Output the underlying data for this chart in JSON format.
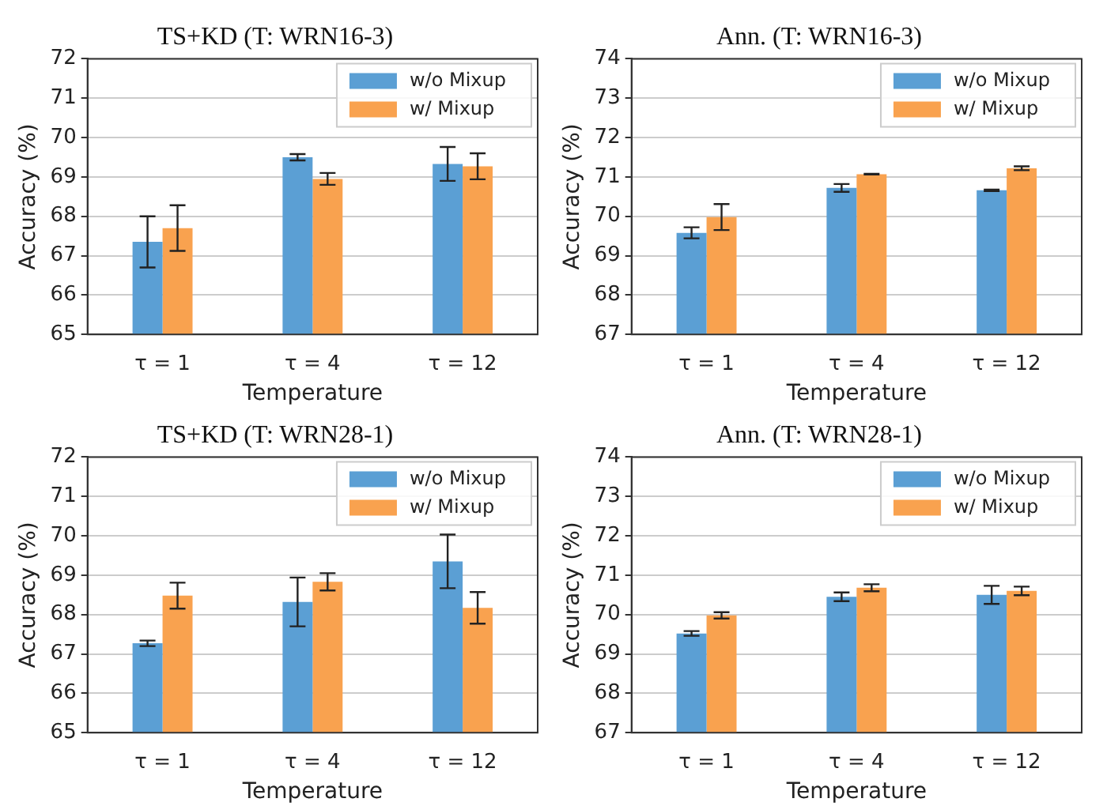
{
  "chart_data": [
    {
      "type": "bar",
      "title": "TS+KD (T: WRN16-3)",
      "xlabel": "Temperature",
      "ylabel": "Accuracy (%)",
      "categories": [
        "τ = 1",
        "τ = 4",
        "τ = 12"
      ],
      "ylim": [
        65,
        72
      ],
      "yticks": [
        65,
        66,
        67,
        68,
        69,
        70,
        71,
        72
      ],
      "grid": "y",
      "legend": "top right",
      "series": [
        {
          "name": "w/o Mixup",
          "color": "#5b9fd4",
          "values": [
            67.35,
            69.5,
            69.33
          ],
          "errors": [
            0.65,
            0.08,
            0.43
          ]
        },
        {
          "name": "w/ Mixup",
          "color": "#f9a24f",
          "values": [
            67.7,
            68.95,
            69.27
          ],
          "errors": [
            0.58,
            0.15,
            0.33
          ]
        }
      ]
    },
    {
      "type": "bar",
      "title": "Ann. (T: WRN16-3)",
      "xlabel": "Temperature",
      "ylabel": "Accuracy (%)",
      "categories": [
        "τ = 1",
        "τ = 4",
        "τ = 12"
      ],
      "ylim": [
        67,
        74
      ],
      "yticks": [
        67,
        68,
        69,
        70,
        71,
        72,
        73,
        74
      ],
      "grid": "y",
      "legend": "top right",
      "series": [
        {
          "name": "w/o Mixup",
          "color": "#5b9fd4",
          "values": [
            69.58,
            70.72,
            70.66
          ],
          "errors": [
            0.14,
            0.1,
            0.02
          ]
        },
        {
          "name": "w/ Mixup",
          "color": "#f9a24f",
          "values": [
            69.98,
            71.07,
            71.22
          ],
          "errors": [
            0.33,
            0.01,
            0.05
          ]
        }
      ]
    },
    {
      "type": "bar",
      "title": "TS+KD (T: WRN28-1)",
      "xlabel": "Temperature",
      "ylabel": "Accuracy (%)",
      "categories": [
        "τ = 1",
        "τ = 4",
        "τ = 12"
      ],
      "ylim": [
        65,
        72
      ],
      "yticks": [
        65,
        66,
        67,
        68,
        69,
        70,
        71,
        72
      ],
      "grid": "y",
      "legend": "top right",
      "series": [
        {
          "name": "w/o Mixup",
          "color": "#5b9fd4",
          "values": [
            67.27,
            68.32,
            69.35
          ],
          "errors": [
            0.07,
            0.62,
            0.68
          ]
        },
        {
          "name": "w/ Mixup",
          "color": "#f9a24f",
          "values": [
            68.48,
            68.83,
            68.17
          ],
          "errors": [
            0.33,
            0.22,
            0.4
          ]
        }
      ]
    },
    {
      "type": "bar",
      "title": "Ann. (T: WRN28-1)",
      "xlabel": "Temperature",
      "ylabel": "Accuracy (%)",
      "categories": [
        "τ = 1",
        "τ = 4",
        "τ = 12"
      ],
      "ylim": [
        67,
        74
      ],
      "yticks": [
        67,
        68,
        69,
        70,
        71,
        72,
        73,
        74
      ],
      "grid": "y",
      "legend": "top right",
      "series": [
        {
          "name": "w/o Mixup",
          "color": "#5b9fd4",
          "values": [
            69.52,
            70.45,
            70.5
          ],
          "errors": [
            0.06,
            0.11,
            0.23
          ]
        },
        {
          "name": "w/ Mixup",
          "color": "#f9a24f",
          "values": [
            69.98,
            70.68,
            70.6
          ],
          "errors": [
            0.08,
            0.09,
            0.11
          ]
        }
      ]
    }
  ]
}
